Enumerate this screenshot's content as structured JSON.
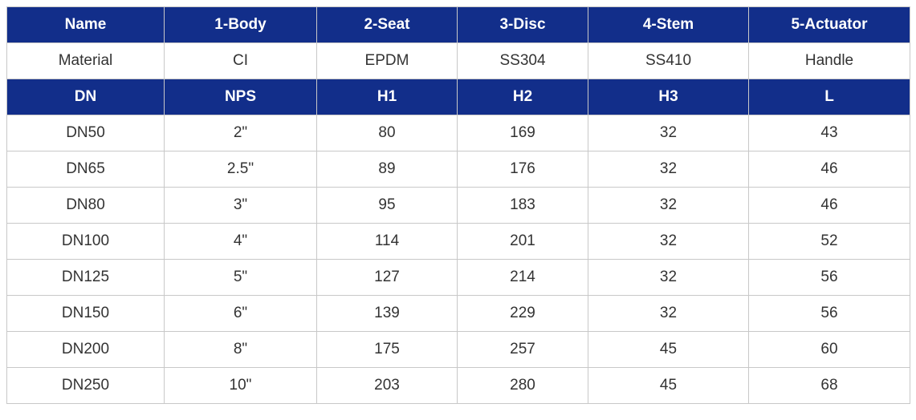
{
  "colors": {
    "header_bg": "#122e8a",
    "header_text": "#ffffff",
    "border": "#c8c8c8",
    "body_text": "#333333"
  },
  "header1": [
    "Name",
    "1-Body",
    "2-Seat",
    "3-Disc",
    "4-Stem",
    "5-Actuator"
  ],
  "material": [
    "Material",
    "CI",
    "EPDM",
    "SS304",
    "SS410",
    "Handle"
  ],
  "header2": [
    "DN",
    "NPS",
    "H1",
    "H2",
    "H3",
    "L"
  ],
  "rows": [
    [
      "DN50",
      "2\"",
      "80",
      "169",
      "32",
      "43"
    ],
    [
      "DN65",
      "2.5\"",
      "89",
      "176",
      "32",
      "46"
    ],
    [
      "DN80",
      "3\"",
      "95",
      "183",
      "32",
      "46"
    ],
    [
      "DN100",
      "4\"",
      "114",
      "201",
      "32",
      "52"
    ],
    [
      "DN125",
      "5\"",
      "127",
      "214",
      "32",
      "56"
    ],
    [
      "DN150",
      "6\"",
      "139",
      "229",
      "32",
      "56"
    ],
    [
      "DN200",
      "8\"",
      "175",
      "257",
      "45",
      "60"
    ],
    [
      "DN250",
      "10\"",
      "203",
      "280",
      "45",
      "68"
    ]
  ]
}
